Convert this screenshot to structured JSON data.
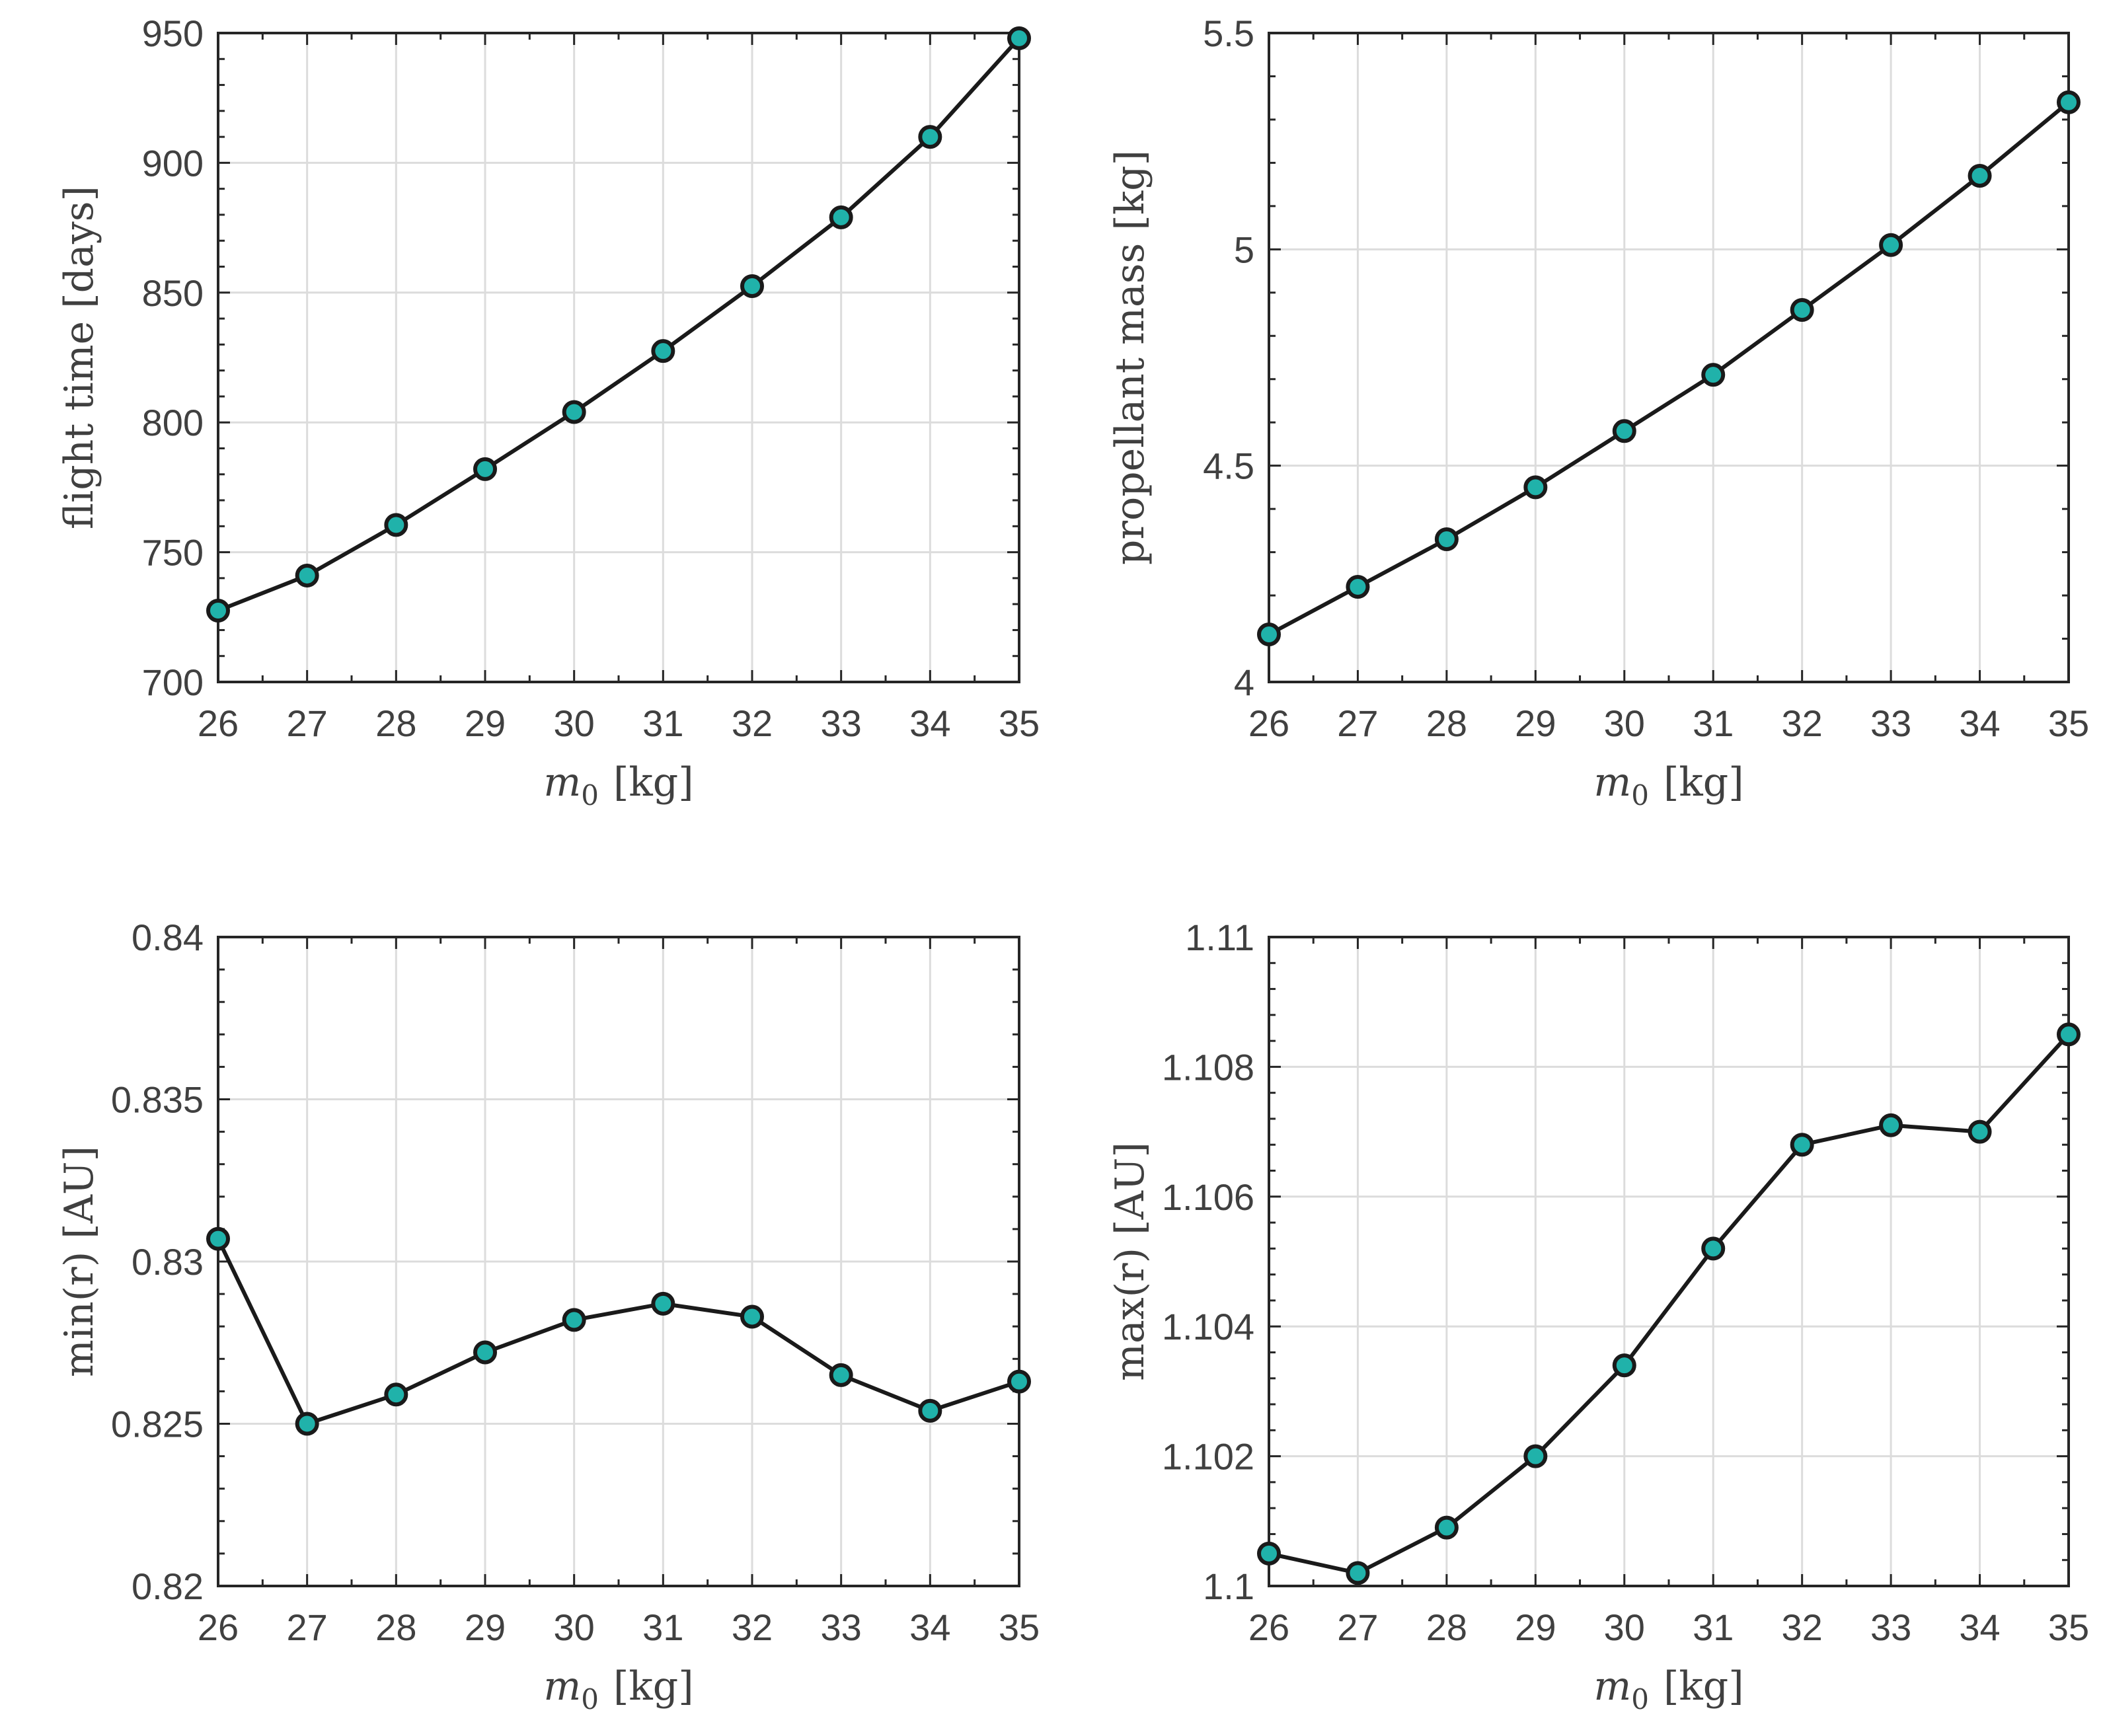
{
  "chart_data": [
    {
      "type": "line",
      "x": [
        26,
        27,
        28,
        29,
        30,
        31,
        32,
        33,
        34,
        35
      ],
      "values": [
        727.5,
        741,
        760.5,
        782,
        804,
        827.5,
        852.5,
        879,
        910,
        948
      ],
      "xlabel_var": "m",
      "xlabel_sub": "0",
      "xlabel_unit": "[kg]",
      "ylabel": "flight time [days]",
      "xlim": [
        26,
        35
      ],
      "ylim": [
        700,
        950
      ],
      "xticks": [
        "26",
        "27",
        "28",
        "29",
        "30",
        "31",
        "32",
        "33",
        "34",
        "35"
      ],
      "yticks": [
        "700",
        "750",
        "800",
        "850",
        "900",
        "950"
      ],
      "grid": true,
      "colors": {
        "marker": "#20b2aa",
        "line": "#1a1a1a"
      }
    },
    {
      "type": "line",
      "x": [
        26,
        27,
        28,
        29,
        30,
        31,
        32,
        33,
        34,
        35
      ],
      "values": [
        4.11,
        4.22,
        4.33,
        4.45,
        4.58,
        4.71,
        4.86,
        5.01,
        5.17,
        5.34
      ],
      "xlabel_var": "m",
      "xlabel_sub": "0",
      "xlabel_unit": "[kg]",
      "ylabel": "propellant mass [kg]",
      "xlim": [
        26,
        35
      ],
      "ylim": [
        4,
        5.5
      ],
      "xticks": [
        "26",
        "27",
        "28",
        "29",
        "30",
        "31",
        "32",
        "33",
        "34",
        "35"
      ],
      "yticks": [
        "4",
        "4.5",
        "5",
        "5.5"
      ],
      "grid": true,
      "colors": {
        "marker": "#20b2aa",
        "line": "#1a1a1a"
      }
    },
    {
      "type": "line",
      "x": [
        26,
        27,
        28,
        29,
        30,
        31,
        32,
        33,
        34,
        35
      ],
      "values": [
        0.8307,
        0.825,
        0.8259,
        0.8272,
        0.8282,
        0.8287,
        0.8283,
        0.8265,
        0.8254,
        0.8263
      ],
      "xlabel_var": "m",
      "xlabel_sub": "0",
      "xlabel_unit": "[kg]",
      "ylabel": "min(r) [AU]",
      "xlim": [
        26,
        35
      ],
      "ylim": [
        0.82,
        0.84
      ],
      "xticks": [
        "26",
        "27",
        "28",
        "29",
        "30",
        "31",
        "32",
        "33",
        "34",
        "35"
      ],
      "yticks": [
        "0.82",
        "0.825",
        "0.83",
        "0.835",
        "0.84"
      ],
      "grid": true,
      "colors": {
        "marker": "#20b2aa",
        "line": "#1a1a1a"
      }
    },
    {
      "type": "line",
      "x": [
        26,
        27,
        28,
        29,
        30,
        31,
        32,
        33,
        34,
        35
      ],
      "values": [
        1.1005,
        1.1002,
        1.1009,
        1.102,
        1.1034,
        1.1052,
        1.1068,
        1.1071,
        1.107,
        1.1085
      ],
      "xlabel_var": "m",
      "xlabel_sub": "0",
      "xlabel_unit": "[kg]",
      "ylabel": "max(r) [AU]",
      "xlim": [
        26,
        35
      ],
      "ylim": [
        1.1,
        1.11
      ],
      "xticks": [
        "26",
        "27",
        "28",
        "29",
        "30",
        "31",
        "32",
        "33",
        "34",
        "35"
      ],
      "yticks": [
        "1.1",
        "1.102",
        "1.104",
        "1.106",
        "1.108",
        "1.11"
      ],
      "grid": true,
      "colors": {
        "marker": "#20b2aa",
        "line": "#1a1a1a"
      }
    }
  ]
}
